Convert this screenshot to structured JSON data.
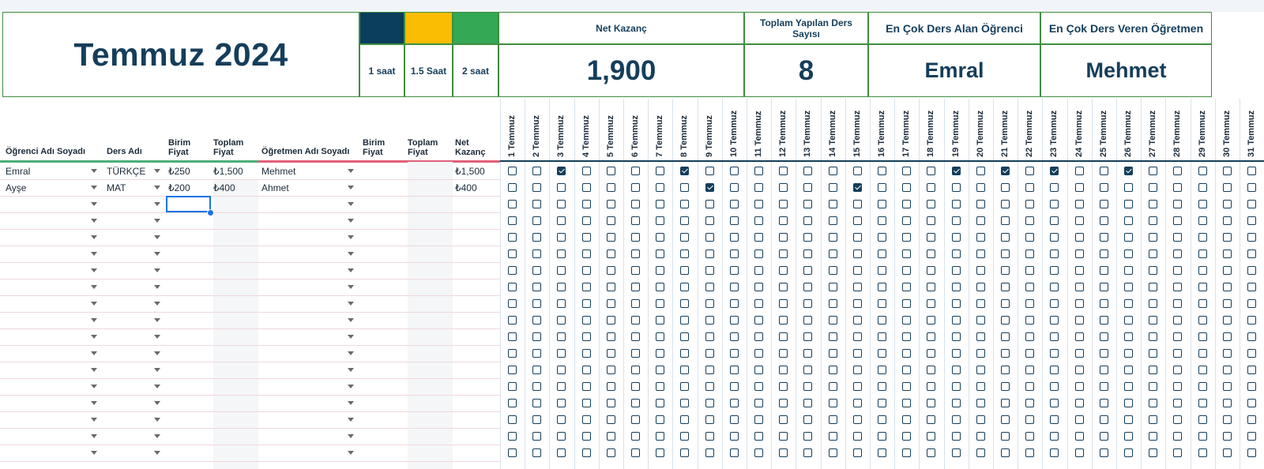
{
  "title": "Temmuz 2024",
  "legend": [
    {
      "label": "1 saat",
      "color": "#0b3d5c"
    },
    {
      "label": "1.5 Saat",
      "color": "#fbbc04"
    },
    {
      "label": "2 saat",
      "color": "#34a853"
    }
  ],
  "stats": [
    {
      "label": "Net Kazanç",
      "value": "1,900"
    },
    {
      "label": "Toplam Yapılan Ders Sayısı",
      "value": "8"
    },
    {
      "label": "En Çok Ders Alan Öğrenci",
      "value": "Emral"
    },
    {
      "label": "En Çok Ders Veren Öğretmen",
      "value": "Mehmet"
    }
  ],
  "columns": {
    "student": "Öğrenci Adı Soyadı",
    "lesson": "Ders Adı",
    "unit_price": "Birim Fiyat",
    "total_price": "Toplam Fiyat",
    "teacher": "Öğretmen Adı Soyadı",
    "t_unit_price": "Birim Fiyat",
    "t_total_price": "Toplam Fiyat",
    "net": "Net Kazanç"
  },
  "days": [
    "1 Temmuz",
    "2 Temmuz",
    "3 Temmuz",
    "4 Temmuz",
    "5 Temmuz",
    "6 Temmuz",
    "7 Temmuz",
    "8 Temmuz",
    "9 Temmuz",
    "10 Temmuz",
    "11 Temmuz",
    "12 Temmuz",
    "13 Temmuz",
    "14 Temmuz",
    "15 Temmuz",
    "16 Temmuz",
    "17 Temmuz",
    "18 Temmuz",
    "19 Temmuz",
    "20 Temmuz",
    "21 Temmuz",
    "22 Temmuz",
    "23 Temmuz",
    "24 Temmuz",
    "25 Temmuz",
    "26 Temmuz",
    "27 Temmuz",
    "28 Temmuz",
    "29 Temmuz",
    "30 Temmuz",
    "31 Temmuz"
  ],
  "rows": [
    {
      "student": "Emral",
      "lesson": "TÜRKÇE",
      "unit_price": "₺250",
      "total_price": "₺1,500",
      "teacher": "Mehmet",
      "net": "₺1,500",
      "checked": [
        3,
        8,
        19,
        21,
        23,
        26
      ]
    },
    {
      "student": "Ayşe",
      "lesson": "MAT",
      "unit_price": "₺200",
      "total_price": "₺400",
      "teacher": "Ahmet",
      "net": "₺400",
      "checked": [
        9,
        15
      ]
    }
  ],
  "empty_row_count": 16
}
